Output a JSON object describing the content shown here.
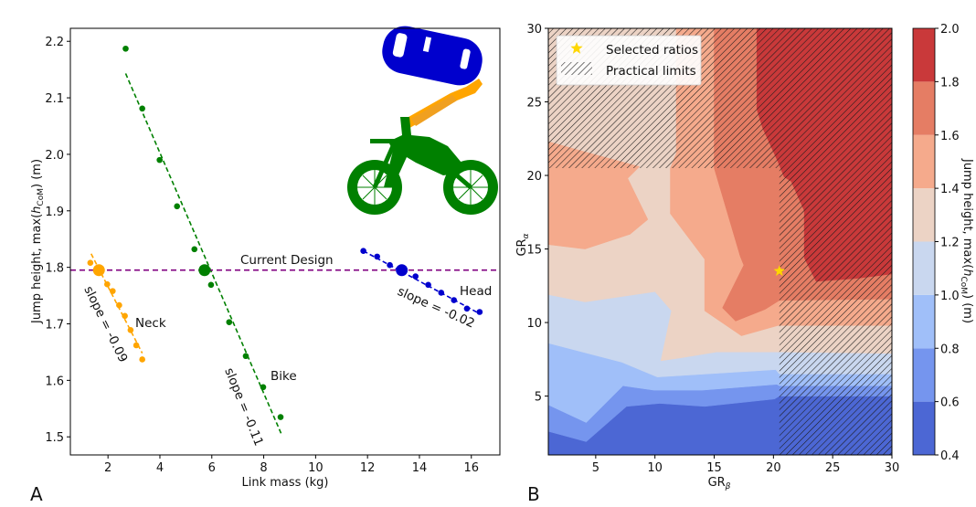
{
  "chart_data": [
    {
      "panel": "A",
      "type": "scatter",
      "xlabel": "Link mass (kg)",
      "ylabel": "Jump height, max(h_CoM) (m)",
      "xlim": [
        0.55,
        17.1
      ],
      "ylim": [
        1.468,
        2.223
      ],
      "xticks": [
        2,
        4,
        6,
        8,
        10,
        12,
        14,
        16
      ],
      "yticks": [
        1.5,
        1.6,
        1.7,
        1.8,
        1.9,
        2.0,
        2.1,
        2.2
      ],
      "ytick_labels": [
        "1.5",
        "1.6",
        "1.7",
        "1.8",
        "1.9",
        "2.0",
        "2.1",
        "2.2"
      ],
      "grid": false,
      "reference_line": {
        "label": "Current Design",
        "y": 1.795,
        "color": "#800080",
        "style": "dashed"
      },
      "series": [
        {
          "name": "Neck",
          "color": "#ffa500",
          "slope_label": "slope = -0.09",
          "current": {
            "x": 1.65,
            "y": 1.795
          },
          "points": [
            {
              "x": 1.32,
              "y": 1.808
            },
            {
              "x": 1.97,
              "y": 1.77
            },
            {
              "x": 2.18,
              "y": 1.758
            },
            {
              "x": 2.43,
              "y": 1.733
            },
            {
              "x": 2.65,
              "y": 1.714
            },
            {
              "x": 2.87,
              "y": 1.689
            },
            {
              "x": 3.09,
              "y": 1.662
            },
            {
              "x": 3.32,
              "y": 1.637
            }
          ],
          "fit": {
            "x": [
              1.35,
              3.32
            ],
            "y": [
              1.824,
              1.648
            ]
          }
        },
        {
          "name": "Bike",
          "color": "#008000",
          "slope_label": "slope = -0.11",
          "current": {
            "x": 5.72,
            "y": 1.795
          },
          "points": [
            {
              "x": 2.68,
              "y": 2.187
            },
            {
              "x": 3.32,
              "y": 2.081
            },
            {
              "x": 3.99,
              "y": 1.99
            },
            {
              "x": 4.66,
              "y": 1.908
            },
            {
              "x": 5.33,
              "y": 1.832
            },
            {
              "x": 5.97,
              "y": 1.769
            },
            {
              "x": 6.67,
              "y": 1.703
            },
            {
              "x": 7.31,
              "y": 1.643
            },
            {
              "x": 7.98,
              "y": 1.588
            },
            {
              "x": 8.65,
              "y": 1.535
            }
          ],
          "fit": {
            "x": [
              2.68,
              8.68
            ],
            "y": [
              2.143,
              1.505
            ]
          }
        },
        {
          "name": "Head",
          "color": "#0000cd",
          "slope_label": "slope = -0.02",
          "current": {
            "x": 13.32,
            "y": 1.795
          },
          "points": [
            {
              "x": 11.84,
              "y": 1.829
            },
            {
              "x": 12.37,
              "y": 1.819
            },
            {
              "x": 12.86,
              "y": 1.804
            },
            {
              "x": 13.85,
              "y": 1.784
            },
            {
              "x": 14.34,
              "y": 1.769
            },
            {
              "x": 14.84,
              "y": 1.755
            },
            {
              "x": 15.33,
              "y": 1.742
            },
            {
              "x": 15.83,
              "y": 1.727
            },
            {
              "x": 16.32,
              "y": 1.721
            }
          ],
          "fit": {
            "x": [
              11.84,
              16.32
            ],
            "y": [
              1.829,
              1.718
            ]
          }
        }
      ],
      "inset": "robot illustration (blue head, orange neck, green bike)"
    },
    {
      "panel": "B",
      "type": "heatmap",
      "subtype": "filled contour",
      "xlabel": "GR_β",
      "ylabel": "GR_α",
      "xlim": [
        1,
        30
      ],
      "ylim": [
        1,
        30
      ],
      "xticks": [
        5,
        10,
        15,
        20,
        25,
        30
      ],
      "yticks": [
        5,
        10,
        15,
        20,
        25,
        30
      ],
      "colorbar": {
        "label": "Jump height, max(h_CoM) (m)",
        "levels": [
          0.4,
          0.6,
          0.8,
          1.0,
          1.2,
          1.4,
          1.6,
          1.8,
          2.0
        ],
        "tick_labels": [
          "0.4",
          "0.6",
          "0.8",
          "1.0",
          "1.2",
          "1.4",
          "1.6",
          "1.8",
          "2.0"
        ],
        "colors": [
          "#4c67d4",
          "#7595ee",
          "#a0bff9",
          "#c9d7ef",
          "#ecd3c5",
          "#f5aa8c",
          "#e57d64",
          "#c9393a"
        ]
      },
      "contours": [
        {
          "level": 0.4,
          "polys": [
            [
              [
                1,
                1
              ],
              [
                30,
                1
              ],
              [
                30,
                30
              ],
              [
                1,
                30
              ]
            ]
          ]
        },
        {
          "level": 0.6,
          "polys": [
            [
              [
                1,
                2.6
              ],
              [
                4.2,
                1.9
              ],
              [
                7.6,
                4.3
              ],
              [
                10.4,
                4.5
              ],
              [
                14.2,
                4.3
              ],
              [
                20.1,
                4.8
              ],
              [
                20.5,
                5.0
              ],
              [
                30,
                5.0
              ],
              [
                30,
                30
              ],
              [
                1,
                30
              ]
            ]
          ]
        },
        {
          "level": 0.8,
          "polys": [
            [
              [
                1,
                4.4
              ],
              [
                4.2,
                3.2
              ],
              [
                7.3,
                5.7
              ],
              [
                9.9,
                5.4
              ],
              [
                14.0,
                5.4
              ],
              [
                20.3,
                5.8
              ],
              [
                20.5,
                5.7
              ],
              [
                30,
                5.7
              ],
              [
                30,
                30
              ],
              [
                1,
                30
              ]
            ]
          ]
        },
        {
          "level": 1.0,
          "polys": [
            [
              [
                1,
                8.6
              ],
              [
                7.2,
                7.3
              ],
              [
                10.2,
                6.3
              ],
              [
                20.2,
                6.8
              ],
              [
                20.5,
                6.5
              ],
              [
                30,
                6.5
              ],
              [
                30,
                30
              ],
              [
                1,
                30
              ]
            ]
          ]
        },
        {
          "level": 1.2,
          "polys": [
            [
              [
                1,
                11.9
              ],
              [
                4.1,
                11.4
              ],
              [
                10.0,
                12.1
              ],
              [
                11.4,
                10.8
              ],
              [
                10.5,
                7.4
              ],
              [
                12.2,
                7.6
              ],
              [
                15.2,
                8.0
              ],
              [
                20.5,
                8.0
              ],
              [
                30,
                7.9
              ],
              [
                30,
                30
              ],
              [
                1,
                30
              ]
            ]
          ]
        },
        {
          "level": 1.4,
          "polys": [
            [
              [
                1,
                15.3
              ],
              [
                4.1,
                15.0
              ],
              [
                7.9,
                16.0
              ],
              [
                9.4,
                17.0
              ],
              [
                7.7,
                19.8
              ],
              [
                8.7,
                20.6
              ],
              [
                4.1,
                21.6
              ],
              [
                1,
                22.3
              ]
            ],
            [
              [
                11.8,
                30
              ],
              [
                11.8,
                21.5
              ],
              [
                11.3,
                20.5
              ],
              [
                11.3,
                17.4
              ],
              [
                14.2,
                14.3
              ],
              [
                14.2,
                10.8
              ],
              [
                17.3,
                9.1
              ],
              [
                20.4,
                9.8
              ],
              [
                30,
                9.8
              ],
              [
                30,
                30
              ]
            ]
          ]
        },
        {
          "level": 1.6,
          "polys": [
            [
              [
                15.0,
                30
              ],
              [
                15.0,
                20.5
              ],
              [
                17.2,
                14.5
              ],
              [
                17.5,
                13.9
              ],
              [
                15.7,
                11.0
              ],
              [
                16.8,
                10.1
              ],
              [
                19.3,
                10.9
              ],
              [
                20.5,
                11.5
              ],
              [
                30,
                11.6
              ],
              [
                30,
                30
              ]
            ]
          ]
        },
        {
          "level": 1.8,
          "polys": [
            [
              [
                18.6,
                30
              ],
              [
                18.6,
                24.5
              ],
              [
                19.1,
                23.2
              ],
              [
                20.4,
                20.9
              ],
              [
                20.9,
                19.9
              ],
              [
                21.5,
                19.6
              ],
              [
                22.6,
                17.6
              ],
              [
                22.6,
                14.4
              ],
              [
                23.6,
                12.8
              ],
              [
                27.0,
                13.0
              ],
              [
                30,
                13.3
              ],
              [
                30,
                30
              ]
            ]
          ]
        }
      ],
      "practical_limits": {
        "gr_beta_max": 20.5,
        "gr_alpha_max": 20.5,
        "description": "hatched where GR_β > 20.5 or GR_α > 20.5"
      },
      "selected_ratio": {
        "x": 20.5,
        "y": 13.5,
        "color": "#ffd700"
      },
      "legend": {
        "placement": "upper-left",
        "entries": [
          "Selected ratios",
          "Practical limits"
        ]
      }
    }
  ],
  "labels": {
    "panel_a": "A",
    "panel_b": "B",
    "a_xlabel": "Link mass (kg)",
    "a_ylabel_prefix": "Jump height, max(",
    "a_ylabel_h": "h",
    "a_ylabel_sub": "CoM",
    "a_ylabel_suffix": ") (m)",
    "current_design": "Current Design",
    "neck": "Neck",
    "bike": "Bike",
    "head": "Head",
    "neck_slope": "slope = -0.09",
    "bike_slope": "slope = -0.11",
    "head_slope": "slope = -0.02",
    "b_xlabel": "GR",
    "b_xlabel_sub": "β",
    "b_ylabel": "GR",
    "b_ylabel_sub": "α",
    "legend_selected": "Selected ratios",
    "legend_limits": "Practical limits",
    "cbar_prefix": "Jump height, max(",
    "cbar_h": "h",
    "cbar_sub": "CoM",
    "cbar_suffix": ") (m)"
  }
}
